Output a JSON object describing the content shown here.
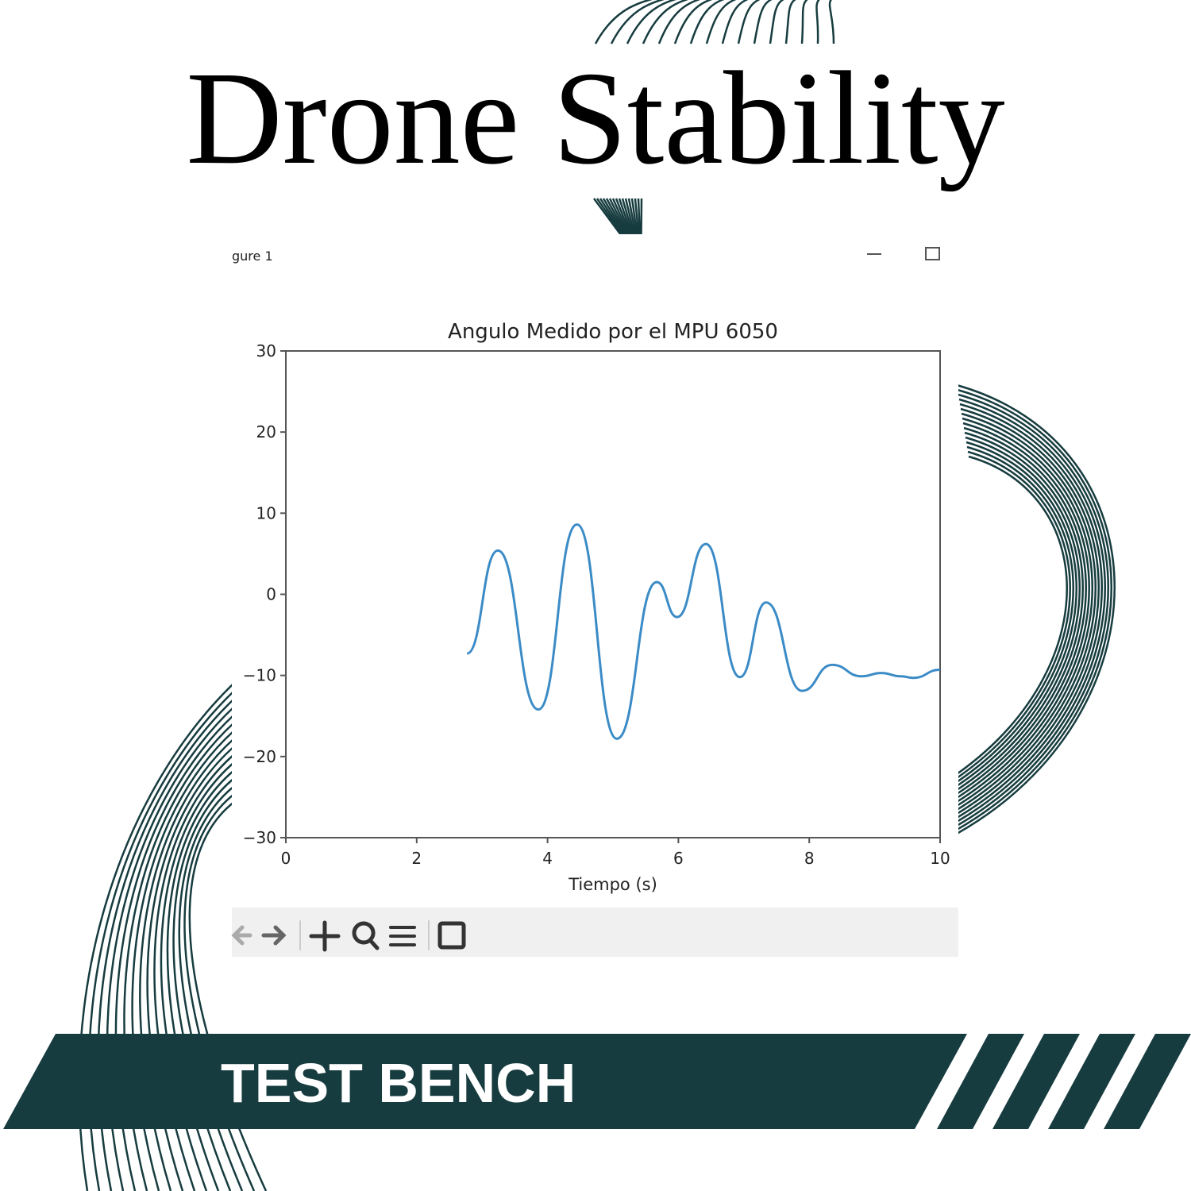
{
  "poster": {
    "title": "Drone Stability",
    "banner": "TEST BENCH"
  },
  "window": {
    "title": "gure 1"
  },
  "chart_data": {
    "type": "line",
    "title": "Angulo Medido por el MPU 6050",
    "x_label": "Tiempo (s)",
    "xlim": [
      0,
      10
    ],
    "xticks": [
      0,
      2,
      4,
      6,
      8,
      10
    ],
    "ylim": [
      -30,
      30
    ],
    "yticks": [
      {
        "value": -30,
        "label": "−30"
      },
      {
        "value": -20,
        "label": "−20"
      },
      {
        "value": -10,
        "label": "−10"
      },
      0,
      10,
      20,
      30
    ],
    "series": [
      {
        "color": "#3b8bc6",
        "x": [
          2.77,
          3.24,
          3.86,
          4.45,
          5.06,
          5.67,
          5.98,
          6.42,
          6.94,
          7.34,
          7.89,
          8.35,
          8.8,
          9.1,
          9.4,
          9.59,
          10
        ],
        "values": [
          -7.3,
          5.4,
          -14.2,
          8.6,
          -17.8,
          1.5,
          -2.8,
          6.2,
          -10.2,
          -1.0,
          -11.9,
          -8.7,
          -10.1,
          -9.7,
          -10.1,
          -10.3,
          -9.3
        ]
      }
    ]
  }
}
